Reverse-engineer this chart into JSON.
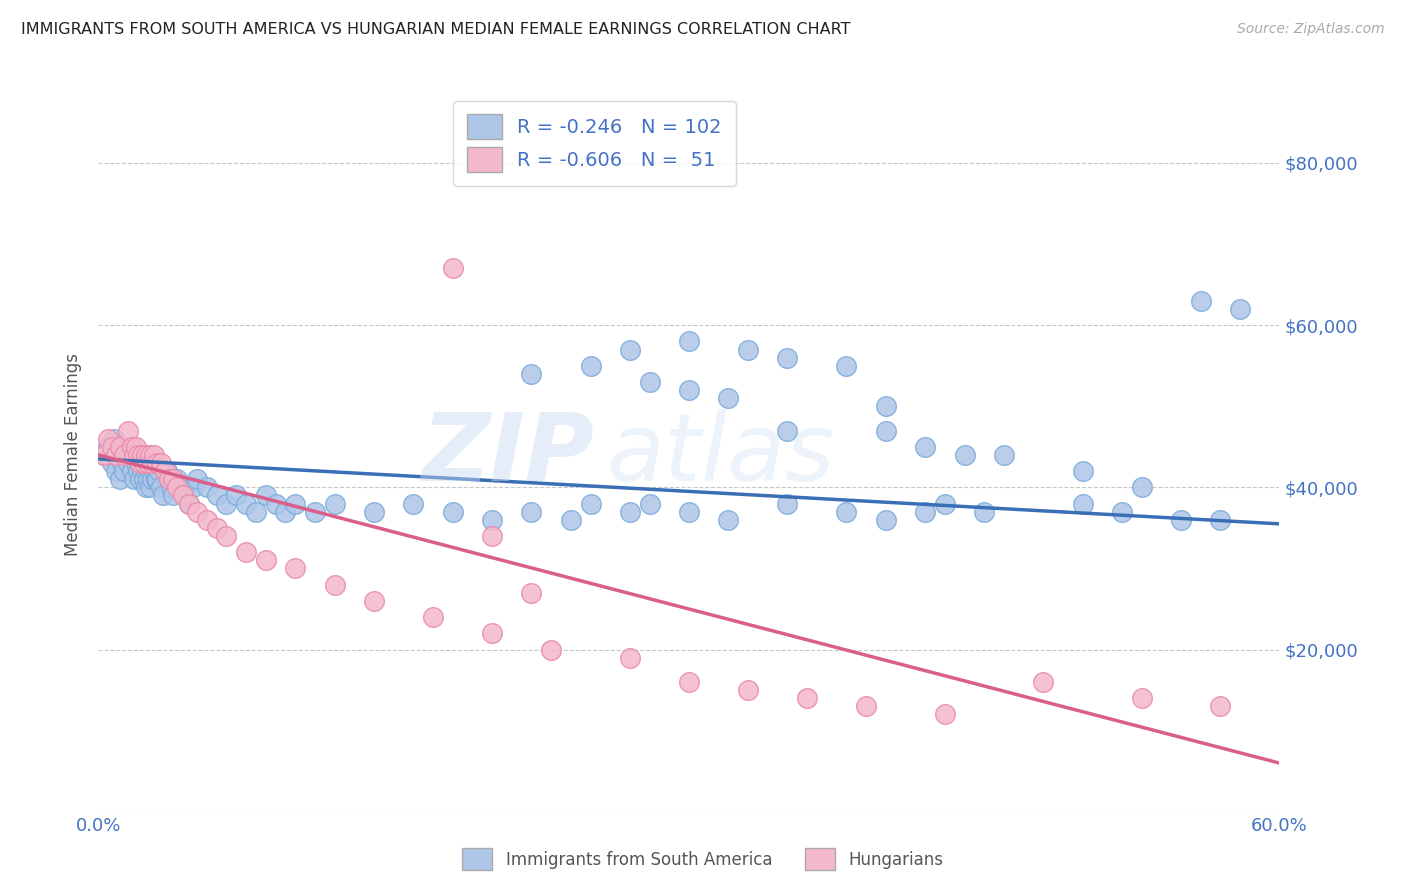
{
  "title": "IMMIGRANTS FROM SOUTH AMERICA VS HUNGARIAN MEDIAN FEMALE EARNINGS CORRELATION CHART",
  "source": "Source: ZipAtlas.com",
  "ylabel": "Median Female Earnings",
  "xlim": [
    0.0,
    0.6
  ],
  "ylim": [
    0,
    88000
  ],
  "xticks": [
    0.0,
    0.6
  ],
  "xtick_labels": [
    "0.0%",
    "60.0%"
  ],
  "ytick_vals": [
    0,
    20000,
    40000,
    60000,
    80000
  ],
  "ytick_labels_right": [
    "",
    "$20,000",
    "$40,000",
    "$60,000",
    "$80,000"
  ],
  "legend_r1": "R = -0.246",
  "legend_n1": "N = 102",
  "legend_r2": "R = -0.606",
  "legend_n2": "N =  51",
  "blue_color": "#aec6e8",
  "pink_color": "#f4b8cb",
  "blue_edge": "#7aabda",
  "pink_edge": "#e88aaa",
  "line_blue": "#3b6fb5",
  "line_pink": "#d95f8a",
  "watermark_zip": "ZIP",
  "watermark_atlas": "atlas",
  "background": "#ffffff",
  "grid_color": "#c8c8c8",
  "title_color": "#222222",
  "axis_label_color": "#555555",
  "tick_label_color": "#4472c4",
  "legend_text_color": "#333333",
  "legend_value_color": "#4472c4",
  "blue_scatter_x": [
    0.003,
    0.005,
    0.007,
    0.008,
    0.009,
    0.01,
    0.011,
    0.012,
    0.013,
    0.014,
    0.015,
    0.016,
    0.017,
    0.018,
    0.018,
    0.019,
    0.02,
    0.02,
    0.021,
    0.021,
    0.022,
    0.022,
    0.023,
    0.023,
    0.024,
    0.024,
    0.025,
    0.025,
    0.026,
    0.026,
    0.027,
    0.027,
    0.028,
    0.029,
    0.03,
    0.03,
    0.031,
    0.032,
    0.033,
    0.035,
    0.036,
    0.037,
    0.038,
    0.04,
    0.042,
    0.044,
    0.046,
    0.048,
    0.05,
    0.055,
    0.06,
    0.065,
    0.07,
    0.075,
    0.08,
    0.085,
    0.09,
    0.095,
    0.1,
    0.11,
    0.12,
    0.14,
    0.16,
    0.18,
    0.2,
    0.22,
    0.24,
    0.25,
    0.27,
    0.28,
    0.3,
    0.32,
    0.35,
    0.38,
    0.4,
    0.42,
    0.43,
    0.45,
    0.5,
    0.52,
    0.55,
    0.27,
    0.3,
    0.33,
    0.35,
    0.38,
    0.4,
    0.22,
    0.25,
    0.28,
    0.3,
    0.32,
    0.35,
    0.4,
    0.42,
    0.44,
    0.46,
    0.5,
    0.53,
    0.57,
    0.56,
    0.58
  ],
  "blue_scatter_y": [
    44000,
    45000,
    43000,
    46000,
    42000,
    44000,
    41000,
    43000,
    42000,
    44000,
    43000,
    45000,
    42000,
    44000,
    41000,
    43000,
    44000,
    42000,
    43000,
    41000,
    44000,
    42000,
    43000,
    41000,
    42000,
    40000,
    43000,
    41000,
    42000,
    40000,
    43000,
    41000,
    42000,
    41000,
    43000,
    41000,
    42000,
    40000,
    39000,
    42000,
    41000,
    40000,
    39000,
    41000,
    40000,
    39000,
    38000,
    40000,
    41000,
    40000,
    39000,
    38000,
    39000,
    38000,
    37000,
    39000,
    38000,
    37000,
    38000,
    37000,
    38000,
    37000,
    38000,
    37000,
    36000,
    37000,
    36000,
    38000,
    37000,
    38000,
    37000,
    36000,
    38000,
    37000,
    36000,
    37000,
    38000,
    37000,
    38000,
    37000,
    36000,
    57000,
    58000,
    57000,
    56000,
    55000,
    50000,
    54000,
    55000,
    53000,
    52000,
    51000,
    47000,
    47000,
    45000,
    44000,
    44000,
    42000,
    40000,
    36000,
    63000,
    62000
  ],
  "pink_scatter_x": [
    0.003,
    0.005,
    0.007,
    0.009,
    0.011,
    0.013,
    0.015,
    0.017,
    0.018,
    0.019,
    0.02,
    0.021,
    0.022,
    0.023,
    0.024,
    0.025,
    0.026,
    0.027,
    0.028,
    0.03,
    0.032,
    0.034,
    0.036,
    0.038,
    0.04,
    0.043,
    0.046,
    0.05,
    0.055,
    0.06,
    0.065,
    0.075,
    0.085,
    0.1,
    0.12,
    0.14,
    0.17,
    0.2,
    0.23,
    0.27,
    0.3,
    0.33,
    0.36,
    0.39,
    0.43,
    0.48,
    0.53,
    0.57,
    0.18,
    0.2,
    0.22
  ],
  "pink_scatter_y": [
    44000,
    46000,
    45000,
    44000,
    45000,
    44000,
    47000,
    45000,
    44000,
    45000,
    44000,
    43000,
    44000,
    43000,
    44000,
    43000,
    44000,
    43000,
    44000,
    43000,
    43000,
    42000,
    41000,
    41000,
    40000,
    39000,
    38000,
    37000,
    36000,
    35000,
    34000,
    32000,
    31000,
    30000,
    28000,
    26000,
    24000,
    22000,
    20000,
    19000,
    16000,
    15000,
    14000,
    13000,
    12000,
    16000,
    14000,
    13000,
    67000,
    34000,
    27000
  ],
  "blue_trend_x": [
    0.0,
    0.6
  ],
  "blue_trend_y": [
    43500,
    35500
  ],
  "pink_trend_x": [
    0.0,
    0.6
  ],
  "pink_trend_y": [
    44000,
    6000
  ],
  "legend_label1": "Immigrants from South America",
  "legend_label2": "Hungarians"
}
